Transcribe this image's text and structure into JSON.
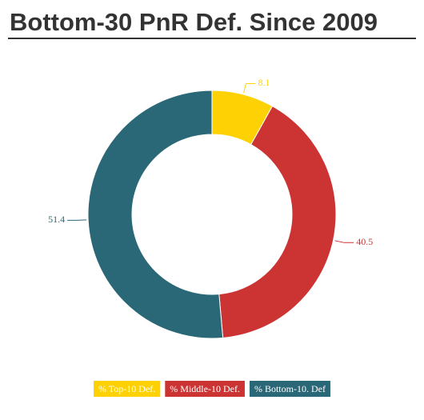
{
  "chart_data": {
    "type": "donut",
    "title": "Bottom-30 PnR Def. Since 2009",
    "categories": [
      "% Top-10 Def.",
      "% Middle-10 Def.",
      "% Bottom-10. Def"
    ],
    "values": [
      8.1,
      40.5,
      51.4
    ],
    "colors": [
      "#fed105",
      "#cc3434",
      "#2a6878"
    ],
    "legend": "bottom"
  }
}
